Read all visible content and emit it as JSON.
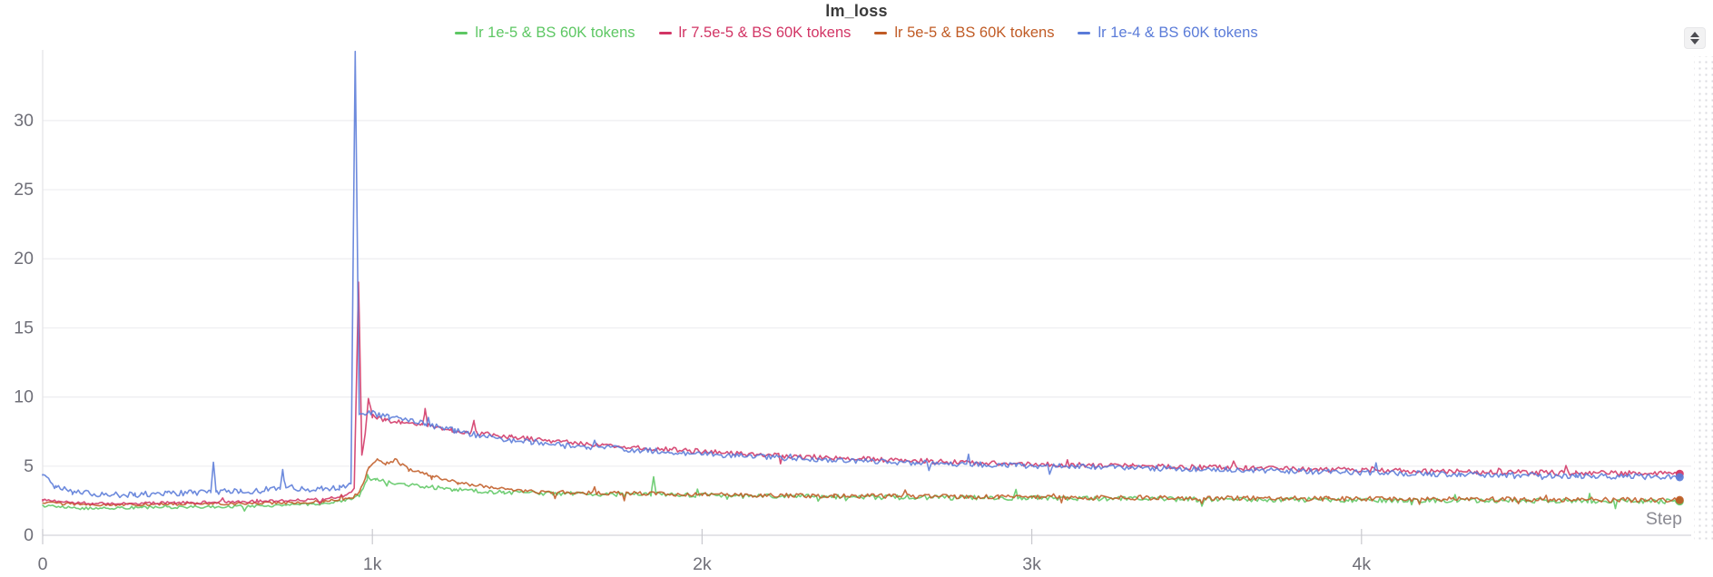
{
  "panel": {
    "reorder_button": "reorder-panel"
  },
  "chart_data": {
    "type": "line",
    "title": "lm_loss",
    "xlabel": "Step",
    "ylabel": "",
    "grid": true,
    "legend_position": "top",
    "xlim": [
      0,
      5000
    ],
    "ylim": [
      0,
      35.2
    ],
    "x_ticks": [
      {
        "value": 0,
        "label": "0"
      },
      {
        "value": 1000,
        "label": "1k"
      },
      {
        "value": 2000,
        "label": "2k"
      },
      {
        "value": 3000,
        "label": "3k"
      },
      {
        "value": 4000,
        "label": "4k"
      }
    ],
    "y_ticks": [
      {
        "value": 0,
        "label": "0"
      },
      {
        "value": 5,
        "label": "5"
      },
      {
        "value": 10,
        "label": "10"
      },
      {
        "value": 15,
        "label": "15"
      },
      {
        "value": 20,
        "label": "20"
      },
      {
        "value": 25,
        "label": "25"
      },
      {
        "value": 30,
        "label": "30"
      }
    ],
    "series": [
      {
        "name": "lr 1e-5 & BS 60K tokens",
        "color": "#5dc763",
        "end_value": 2.45,
        "keypoints": [
          [
            0,
            2.15
          ],
          [
            120,
            1.95
          ],
          [
            300,
            2.0
          ],
          [
            500,
            2.05
          ],
          [
            700,
            2.15
          ],
          [
            850,
            2.3
          ],
          [
            920,
            2.5
          ],
          [
            960,
            2.9
          ],
          [
            985,
            4.05
          ],
          [
            1010,
            4.0
          ],
          [
            1100,
            3.7
          ],
          [
            1250,
            3.3
          ],
          [
            1400,
            3.1
          ],
          [
            1600,
            3.0
          ],
          [
            1845,
            2.95
          ],
          [
            1853,
            4.2
          ],
          [
            1861,
            2.95
          ],
          [
            2100,
            2.85
          ],
          [
            2500,
            2.75
          ],
          [
            3000,
            2.7
          ],
          [
            3500,
            2.6
          ],
          [
            4000,
            2.55
          ],
          [
            4500,
            2.5
          ],
          [
            4965,
            2.45
          ]
        ],
        "noise": [
          [
            0,
            0.1
          ],
          [
            900,
            0.1
          ],
          [
            1100,
            0.14
          ],
          [
            2000,
            0.17
          ],
          [
            4965,
            0.17
          ]
        ]
      },
      {
        "name": "lr 7.5e-5 & BS 60K tokens",
        "color": "#d23565",
        "end_value": 4.45,
        "keypoints": [
          [
            0,
            2.55
          ],
          [
            150,
            2.3
          ],
          [
            400,
            2.35
          ],
          [
            650,
            2.45
          ],
          [
            850,
            2.6
          ],
          [
            920,
            2.85
          ],
          [
            945,
            3.3
          ],
          [
            958,
            18.35
          ],
          [
            968,
            5.9
          ],
          [
            978,
            7.2
          ],
          [
            988,
            9.8
          ],
          [
            1000,
            8.6
          ],
          [
            1040,
            8.3
          ],
          [
            1090,
            8.15
          ],
          [
            1152,
            8.0
          ],
          [
            1160,
            9.05
          ],
          [
            1168,
            7.95
          ],
          [
            1240,
            7.6
          ],
          [
            1300,
            7.45
          ],
          [
            1308,
            8.35
          ],
          [
            1316,
            7.4
          ],
          [
            1420,
            7.1
          ],
          [
            1550,
            6.8
          ],
          [
            1700,
            6.5
          ],
          [
            1900,
            6.2
          ],
          [
            2150,
            5.85
          ],
          [
            2400,
            5.6
          ],
          [
            2700,
            5.35
          ],
          [
            3000,
            5.15
          ],
          [
            3300,
            5.0
          ],
          [
            3650,
            4.85
          ],
          [
            4000,
            4.7
          ],
          [
            4350,
            4.6
          ],
          [
            4650,
            4.5
          ],
          [
            4965,
            4.45
          ]
        ],
        "noise": [
          [
            0,
            0.09
          ],
          [
            930,
            0.1
          ],
          [
            1000,
            0.16
          ],
          [
            2500,
            0.18
          ],
          [
            4965,
            0.19
          ]
        ]
      },
      {
        "name": "lr 5e-5 & BS 60K tokens",
        "color": "#c05b25",
        "end_value": 2.55,
        "keypoints": [
          [
            0,
            2.35
          ],
          [
            150,
            2.2
          ],
          [
            400,
            2.25
          ],
          [
            650,
            2.3
          ],
          [
            850,
            2.45
          ],
          [
            930,
            2.7
          ],
          [
            960,
            3.1
          ],
          [
            990,
            4.9
          ],
          [
            1015,
            5.55
          ],
          [
            1040,
            5.2
          ],
          [
            1070,
            5.45
          ],
          [
            1110,
            4.75
          ],
          [
            1180,
            4.3
          ],
          [
            1260,
            3.8
          ],
          [
            1360,
            3.45
          ],
          [
            1500,
            3.15
          ],
          [
            1700,
            3.05
          ],
          [
            2000,
            2.95
          ],
          [
            2400,
            2.85
          ],
          [
            2900,
            2.8
          ],
          [
            3400,
            2.7
          ],
          [
            3900,
            2.65
          ],
          [
            4400,
            2.6
          ],
          [
            4965,
            2.55
          ]
        ],
        "noise": [
          [
            0,
            0.09
          ],
          [
            950,
            0.1
          ],
          [
            1100,
            0.12
          ],
          [
            2200,
            0.16
          ],
          [
            4965,
            0.18
          ]
        ]
      },
      {
        "name": "lr 1e-4 & BS 60K tokens",
        "color": "#5a7bd8",
        "end_value": 4.2,
        "keypoints": [
          [
            0,
            4.35
          ],
          [
            40,
            3.5
          ],
          [
            90,
            3.15
          ],
          [
            180,
            2.95
          ],
          [
            280,
            2.95
          ],
          [
            380,
            3.0
          ],
          [
            460,
            3.05
          ],
          [
            510,
            3.15
          ],
          [
            518,
            5.5
          ],
          [
            526,
            3.15
          ],
          [
            600,
            3.2
          ],
          [
            660,
            3.25
          ],
          [
            720,
            3.45
          ],
          [
            728,
            4.6
          ],
          [
            736,
            3.5
          ],
          [
            790,
            3.35
          ],
          [
            850,
            3.35
          ],
          [
            900,
            3.45
          ],
          [
            935,
            3.6
          ],
          [
            948,
            34.9
          ],
          [
            960,
            8.9
          ],
          [
            1000,
            8.8
          ],
          [
            1050,
            8.55
          ],
          [
            1100,
            8.3
          ],
          [
            1160,
            8.05
          ],
          [
            1250,
            7.55
          ],
          [
            1350,
            7.1
          ],
          [
            1480,
            6.75
          ],
          [
            1650,
            6.4
          ],
          [
            1850,
            6.1
          ],
          [
            2100,
            5.75
          ],
          [
            2350,
            5.5
          ],
          [
            2650,
            5.25
          ],
          [
            2950,
            5.05
          ],
          [
            3250,
            4.9
          ],
          [
            3600,
            4.75
          ],
          [
            3950,
            4.55
          ],
          [
            4300,
            4.4
          ],
          [
            4650,
            4.3
          ],
          [
            4965,
            4.2
          ]
        ],
        "noise": [
          [
            0,
            0.22
          ],
          [
            930,
            0.22
          ],
          [
            1000,
            0.22
          ],
          [
            2000,
            0.2
          ],
          [
            4965,
            0.2
          ]
        ]
      }
    ],
    "draw_order": [
      0,
      2,
      1,
      3
    ],
    "colors": {
      "grid": "#ededf0",
      "axis": "#d4d4d9",
      "y_axis_line": "#e3e3e7",
      "tick": "#c9c9ce",
      "tick_label": "#6f6f78",
      "step_label": "#8a8a92",
      "title": "#3a3a3a"
    }
  }
}
